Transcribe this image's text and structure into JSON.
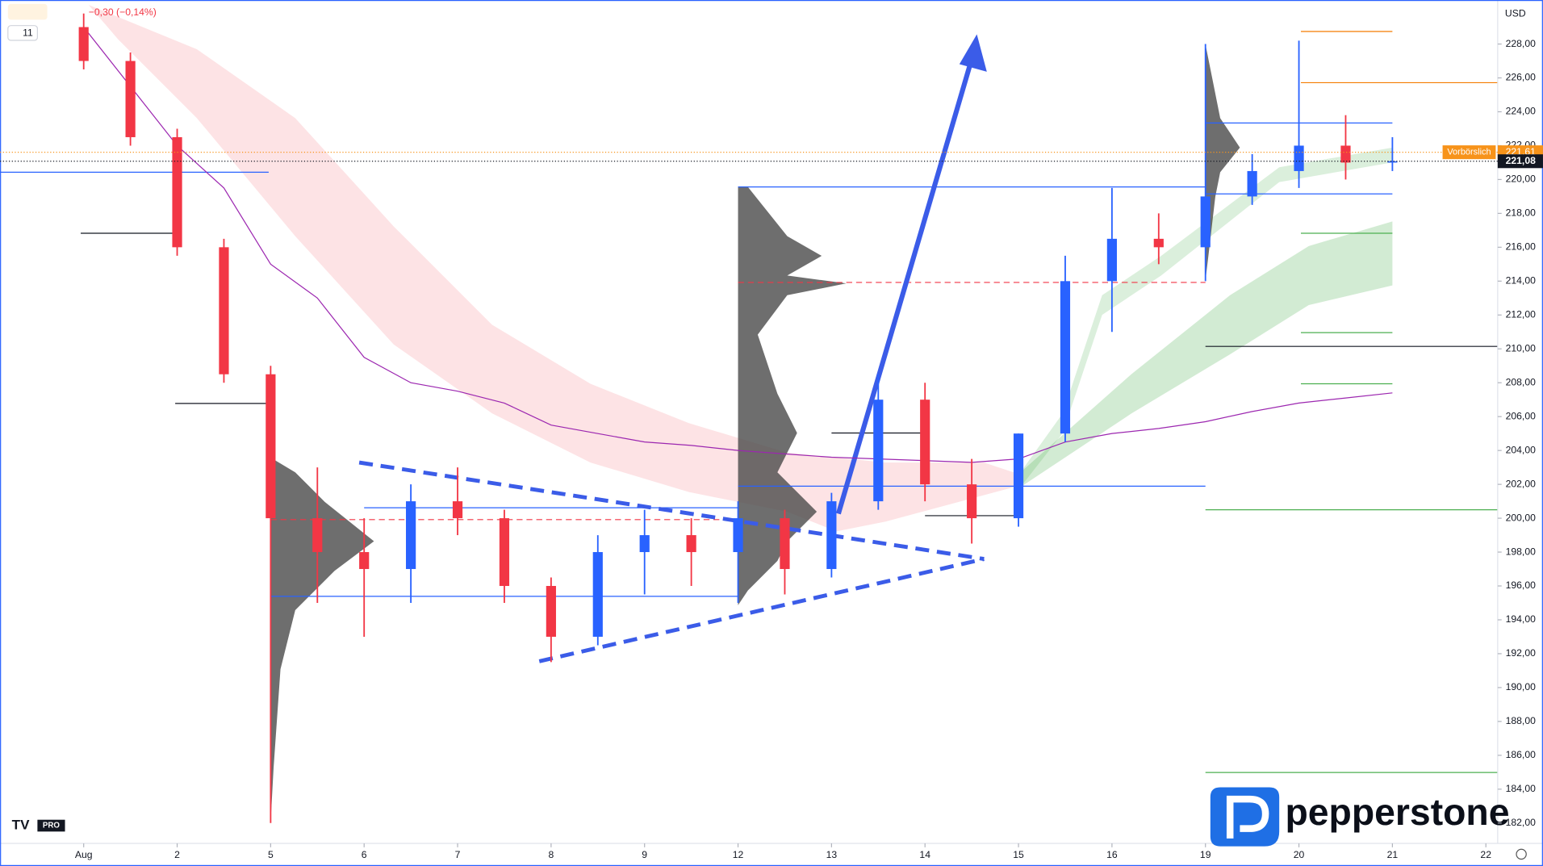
{
  "chart_data": {
    "type": "candlestick",
    "change": "−0,30 (−0,14%)",
    "interval": "11",
    "currency": "USD",
    "logo": "pepperstone",
    "tv": "PRO",
    "categories": [
      "Aug",
      "2",
      "5",
      "6",
      "7",
      "8",
      "9",
      "12",
      "13",
      "14",
      "15",
      "16",
      "19",
      "20",
      "21",
      "22"
    ],
    "x": [
      0,
      0.5,
      1,
      1.5,
      2,
      2.5,
      3,
      3.5,
      4,
      4.5,
      5,
      5.5,
      6,
      6.5,
      7,
      7.5,
      8,
      8.5,
      9,
      9.5,
      10,
      10.5,
      11,
      11.5,
      12,
      12.5,
      13,
      13.5,
      14
    ],
    "open": [
      229,
      227,
      222.5,
      216,
      208.5,
      200,
      198,
      197,
      201,
      200,
      196,
      193,
      198,
      199,
      198,
      200,
      197,
      201,
      207,
      202,
      200,
      205,
      214,
      216.5,
      216,
      219,
      220.5,
      222,
      221
    ],
    "high": [
      229.8,
      227.5,
      223,
      216.5,
      209,
      203,
      200,
      202,
      203,
      200.5,
      196.5,
      199,
      200.5,
      200,
      201,
      200.5,
      201.5,
      208.5,
      208,
      203.5,
      205,
      215.5,
      219.5,
      218,
      228,
      221.5,
      228.2,
      223.8,
      222.5
    ],
    "low": [
      226.5,
      222,
      215.5,
      208,
      182,
      195,
      193,
      195,
      199,
      195,
      191.5,
      192.5,
      195.5,
      196,
      195,
      195.5,
      196.5,
      200.5,
      201,
      198.5,
      199.5,
      204.5,
      211,
      215,
      214,
      218.5,
      219.5,
      220,
      220.5
    ],
    "close": [
      227,
      222.5,
      216,
      208.5,
      200,
      198,
      197,
      201,
      200,
      196,
      193,
      198,
      199,
      198,
      200,
      197,
      201,
      207,
      202,
      200,
      205,
      214,
      216.5,
      216,
      219,
      220.5,
      222,
      221,
      221.08
    ],
    "up_color": "#2962ff",
    "down_color": "#f23645",
    "overlay": {
      "color": "#9c27b0",
      "values": [
        229,
        225.5,
        222,
        219.5,
        215,
        213,
        209.5,
        208,
        207.5,
        206.8,
        205.5,
        205,
        204.5,
        204.3,
        204,
        203.8,
        203.6,
        203.5,
        203.4,
        203.3,
        203.5,
        204.5,
        205,
        205.3,
        205.7,
        206.3,
        206.8,
        207.1,
        207.4
      ]
    },
    "ylim": [
      180.8,
      230.6
    ],
    "yticks": [
      {
        "value": 182,
        "label": "182,00"
      },
      {
        "value": 184,
        "label": "184,00"
      },
      {
        "value": 186,
        "label": "186,00"
      },
      {
        "value": 188,
        "label": "188,00"
      },
      {
        "value": 190,
        "label": "190,00"
      },
      {
        "value": 192,
        "label": "192,00"
      },
      {
        "value": 194,
        "label": "194,00"
      },
      {
        "value": 196,
        "label": "196,00"
      },
      {
        "value": 198,
        "label": "198,00"
      },
      {
        "value": 200,
        "label": "200,00"
      },
      {
        "value": 202,
        "label": "202,00"
      },
      {
        "value": 204,
        "label": "204,00"
      },
      {
        "value": 206,
        "label": "206,00"
      },
      {
        "value": 208,
        "label": "208,00"
      },
      {
        "value": 210,
        "label": "210,00"
      },
      {
        "value": 212,
        "label": "212,00"
      },
      {
        "value": 214,
        "label": "214,00"
      },
      {
        "value": 216,
        "label": "216,00"
      },
      {
        "value": 218,
        "label": "218,00"
      },
      {
        "value": 220,
        "label": "220,00"
      },
      {
        "value": 222,
        "label": "222,00"
      },
      {
        "value": 224,
        "label": "224,00"
      },
      {
        "value": 226,
        "label": "226,00"
      },
      {
        "value": 228,
        "label": "228,00"
      }
    ],
    "premarket": {
      "label": "Vorbörslich",
      "value": 221.61,
      "value_label": "221,61",
      "color": "#f7931a"
    },
    "last": {
      "value": 221.08,
      "value_label": "221,08",
      "color": "#131722"
    }
  }
}
